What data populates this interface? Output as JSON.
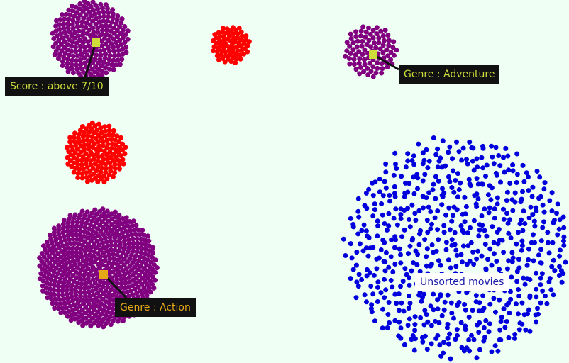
{
  "colors": {
    "background": "#f0fff4",
    "purple": "#800080",
    "red": "#ff0000",
    "blue": "#0000dd",
    "label_bg": "#111111",
    "marker_score": "#cddc39",
    "marker_action": "#e6a817",
    "text_score": "#cddc39",
    "text_adventure": "#cddc39",
    "text_action": "#e6a817",
    "text_unsorted": "#1a1aa8"
  },
  "labels": {
    "score": "Score : above 7/10",
    "adventure": "Genre : Adventure",
    "action": "Genre : Action",
    "unsorted": "Unsorted movies"
  },
  "clusters": [
    {
      "id": "score-above-7",
      "color": "purple",
      "count": 250
    },
    {
      "id": "red-top",
      "count": 70,
      "color": "red"
    },
    {
      "id": "genre-adventure",
      "color": "purple",
      "count": 90
    },
    {
      "id": "red-middle",
      "color": "red",
      "count": 160
    },
    {
      "id": "genre-action",
      "color": "purple",
      "count": 620
    },
    {
      "id": "unsorted-movies",
      "color": "blue",
      "count": 660
    }
  ]
}
